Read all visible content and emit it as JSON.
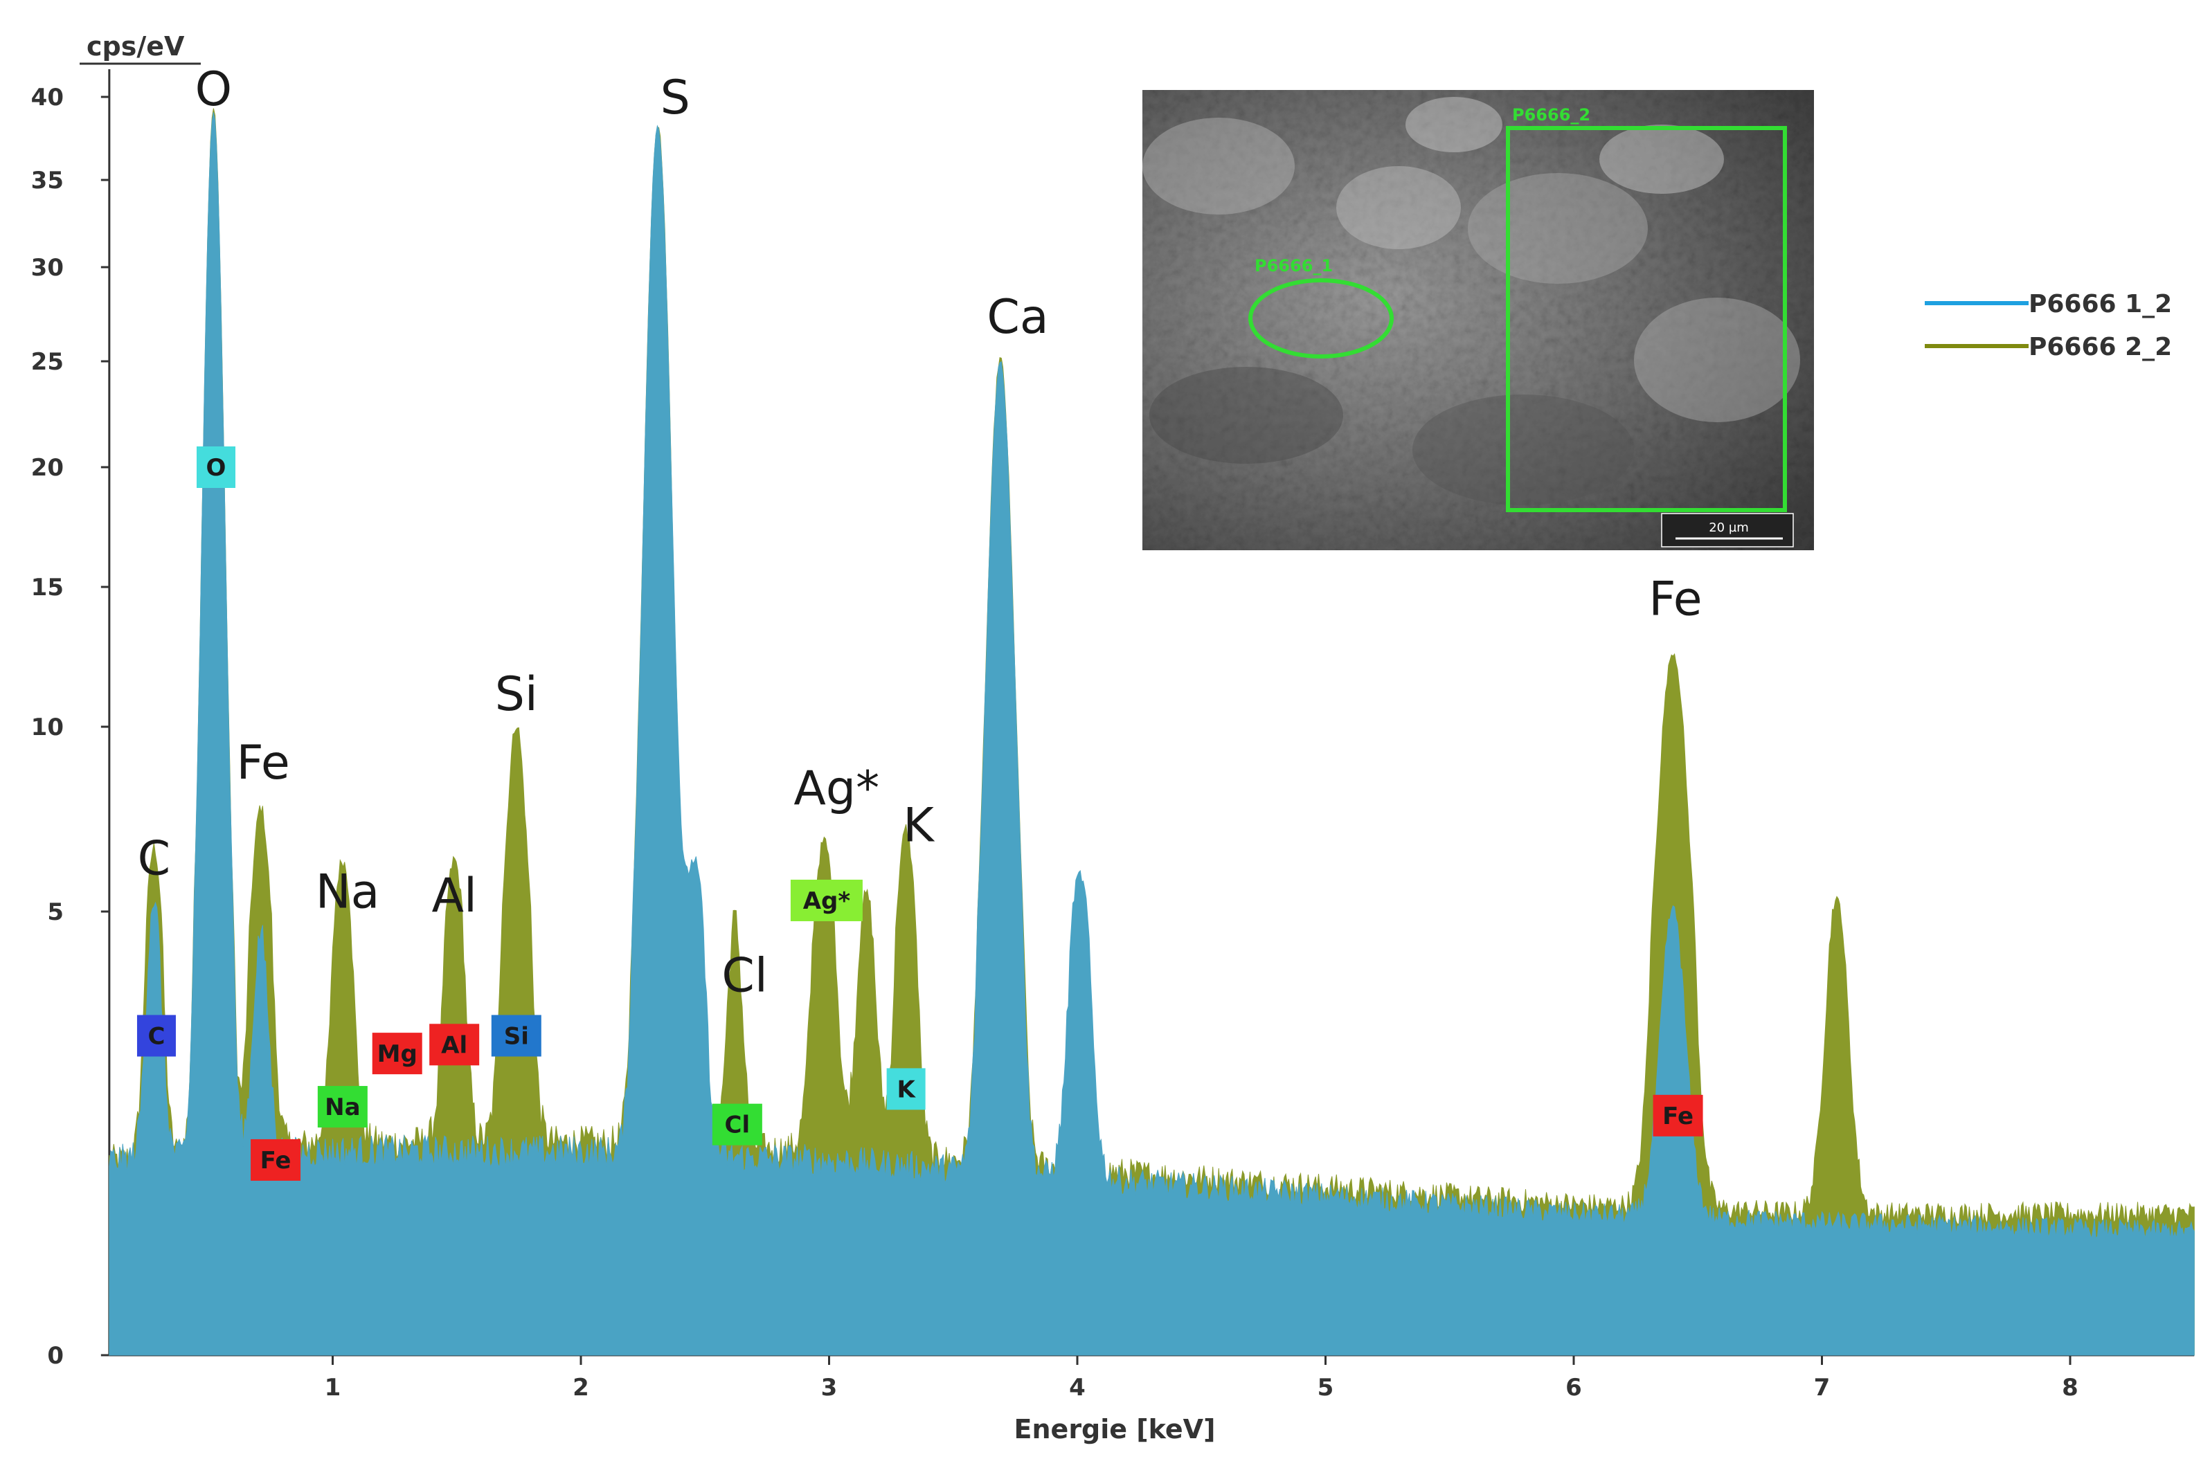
{
  "chart_data": {
    "type": "area",
    "ylabel": "cps/eV",
    "xlabel": "Energie [keV]",
    "xlim": [
      0.1,
      8.5
    ],
    "ylim": [
      0,
      40
    ],
    "y_ticks": [
      0,
      5,
      10,
      15,
      20,
      25,
      30,
      35,
      40
    ],
    "x_ticks": [
      1,
      2,
      3,
      4,
      5,
      6,
      7,
      8
    ],
    "legend_position": "right",
    "series": [
      {
        "name": "P6666 1_2",
        "color": "#4aa3c4",
        "legend_color": "#1ea0e0",
        "baseline": [
          [
            0.1,
            2.2
          ],
          [
            1.0,
            2.3
          ],
          [
            2.0,
            2.3
          ],
          [
            3.0,
            2.2
          ],
          [
            4.0,
            2.0
          ],
          [
            5.0,
            1.8
          ],
          [
            6.0,
            1.6
          ],
          [
            7.0,
            1.5
          ],
          [
            8.5,
            1.4
          ]
        ],
        "peaks": [
          {
            "element": "C",
            "energy": 0.28,
            "height": 3.0,
            "width": 0.03
          },
          {
            "element": "O",
            "energy": 0.52,
            "height": 37.0,
            "width": 0.035
          },
          {
            "element": "Fe",
            "energy": 0.71,
            "height": 2.5,
            "width": 0.03
          },
          {
            "element": "S",
            "energy": 2.31,
            "height": 36.0,
            "width": 0.045
          },
          {
            "element": "S",
            "energy": 2.46,
            "height": 4.0,
            "width": 0.035
          },
          {
            "element": "Ca",
            "energy": 3.69,
            "height": 23.0,
            "width": 0.045
          },
          {
            "element": "Ca",
            "energy": 4.01,
            "height": 4.0,
            "width": 0.04
          },
          {
            "element": "Fe",
            "energy": 6.4,
            "height": 3.5,
            "width": 0.05
          }
        ]
      },
      {
        "name": "P6666 2_2",
        "color": "#8a9a2a",
        "legend_color": "#7f8a10",
        "baseline": [
          [
            0.1,
            2.2
          ],
          [
            1.0,
            2.4
          ],
          [
            2.0,
            2.4
          ],
          [
            3.0,
            2.3
          ],
          [
            4.0,
            2.1
          ],
          [
            5.0,
            1.9
          ],
          [
            6.0,
            1.7
          ],
          [
            7.0,
            1.6
          ],
          [
            8.5,
            1.6
          ]
        ],
        "peaks": [
          {
            "element": "C",
            "energy": 0.28,
            "height": 4.5,
            "width": 0.03
          },
          {
            "element": "O",
            "energy": 0.52,
            "height": 37.0,
            "width": 0.035
          },
          {
            "element": "Fe",
            "energy": 0.71,
            "height": 5.5,
            "width": 0.035
          },
          {
            "element": "Na",
            "energy": 1.04,
            "height": 4.0,
            "width": 0.035
          },
          {
            "element": "Al",
            "energy": 1.49,
            "height": 4.0,
            "width": 0.035
          },
          {
            "element": "Si",
            "energy": 1.74,
            "height": 7.7,
            "width": 0.04
          },
          {
            "element": "S",
            "energy": 2.31,
            "height": 36.0,
            "width": 0.045
          },
          {
            "element": "Cl",
            "energy": 2.62,
            "height": 2.6,
            "width": 0.03
          },
          {
            "element": "Ag*",
            "energy": 2.98,
            "height": 4.6,
            "width": 0.04
          },
          {
            "element": "Ag*",
            "energy": 3.15,
            "height": 3.2,
            "width": 0.035
          },
          {
            "element": "K",
            "energy": 3.31,
            "height": 5.0,
            "width": 0.035
          },
          {
            "element": "Ca",
            "energy": 3.69,
            "height": 23.0,
            "width": 0.045
          },
          {
            "element": "Fe",
            "energy": 6.4,
            "height": 11.0,
            "width": 0.055
          },
          {
            "element": "Fe",
            "energy": 7.06,
            "height": 3.7,
            "width": 0.045
          }
        ]
      }
    ],
    "peak_labels": [
      {
        "text": "O",
        "energy": 0.52,
        "y": 39.5
      },
      {
        "text": "C",
        "energy": 0.28,
        "y": 6.0
      },
      {
        "text": "Fe",
        "energy": 0.72,
        "y": 8.6
      },
      {
        "text": "Na",
        "energy": 1.06,
        "y": 5.1
      },
      {
        "text": "Al",
        "energy": 1.49,
        "y": 5.0
      },
      {
        "text": "Si",
        "energy": 1.74,
        "y": 10.6
      },
      {
        "text": "S",
        "energy": 2.38,
        "y": 39.0
      },
      {
        "text": "Cl",
        "energy": 2.66,
        "y": 4.1
      },
      {
        "text": "Ag*",
        "energy": 3.03,
        "y": 7.9
      },
      {
        "text": "K",
        "energy": 3.36,
        "y": 6.9
      },
      {
        "text": "Ca",
        "energy": 3.76,
        "y": 26.5
      },
      {
        "text": "Fe",
        "energy": 6.41,
        "y": 14.0
      }
    ],
    "element_markers": [
      {
        "text": "C",
        "energy": 0.29,
        "y": 3.6,
        "color": "#3344dd"
      },
      {
        "text": "O",
        "energy": 0.53,
        "y": 20.0,
        "color": "#44dddd"
      },
      {
        "text": "Fe",
        "energy": 0.77,
        "y": 2.2,
        "color": "#ee2222"
      },
      {
        "text": "Na",
        "energy": 1.04,
        "y": 2.8,
        "color": "#33dd33"
      },
      {
        "text": "Mg",
        "energy": 1.26,
        "y": 3.4,
        "color": "#ee2222"
      },
      {
        "text": "Al",
        "energy": 1.49,
        "y": 3.5,
        "color": "#ee2222"
      },
      {
        "text": "Si",
        "energy": 1.74,
        "y": 3.6,
        "color": "#2277cc"
      },
      {
        "text": "Cl",
        "energy": 2.63,
        "y": 2.6,
        "color": "#33dd33"
      },
      {
        "text": "Ag*",
        "energy": 2.99,
        "y": 5.3,
        "color": "#88ee33"
      },
      {
        "text": "K",
        "energy": 3.31,
        "y": 3.0,
        "color": "#44dddd"
      },
      {
        "text": "Fe",
        "energy": 6.42,
        "y": 2.7,
        "color": "#ee2222"
      }
    ]
  },
  "inset": {
    "label_1": "P6666_1",
    "label_2": "P6666_2",
    "scale_bar": "20 µm",
    "marker_color": "#33dd33"
  }
}
